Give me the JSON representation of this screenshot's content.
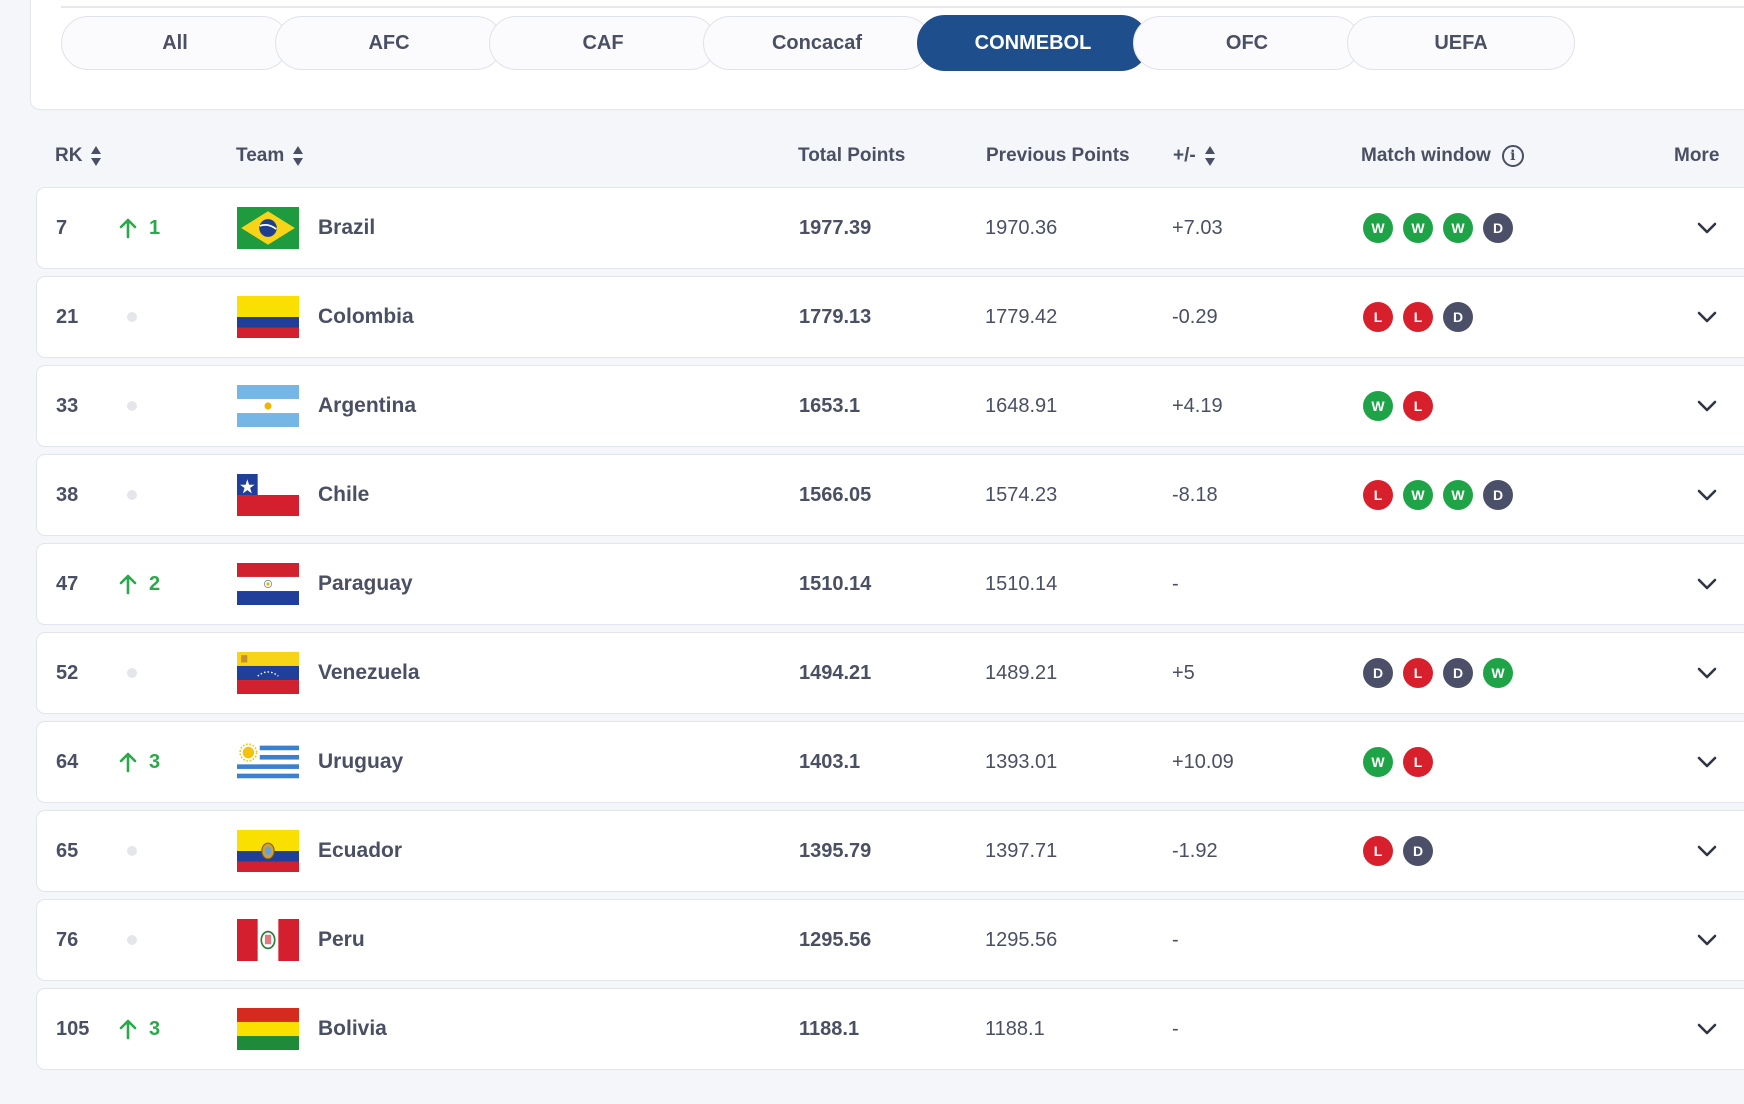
{
  "confederations": {
    "tabs": [
      {
        "label": "All"
      },
      {
        "label": "AFC"
      },
      {
        "label": "CAF"
      },
      {
        "label": "Concacaf"
      },
      {
        "label": "CONMEBOL",
        "active": true
      },
      {
        "label": "OFC"
      },
      {
        "label": "UEFA"
      }
    ]
  },
  "columns": {
    "rk": "RK",
    "team": "Team",
    "total_points": "Total Points",
    "previous_points": "Previous Points",
    "diff": "+/-",
    "match_window": "Match window",
    "more": "More"
  },
  "colors": {
    "active_tab": "#1f4e8c",
    "win": "#1ea446",
    "loss": "#d7202c",
    "draw": "#4b5068",
    "rank_up": "#2aa84a"
  },
  "rows": [
    {
      "rank": "7",
      "movement": "1",
      "team": "Brazil",
      "flag": "brazil",
      "total": "1977.39",
      "previous": "1970.36",
      "diff": "+7.03",
      "results": [
        "W",
        "W",
        "W",
        "D"
      ]
    },
    {
      "rank": "21",
      "movement": "",
      "team": "Colombia",
      "flag": "colombia",
      "total": "1779.13",
      "previous": "1779.42",
      "diff": "-0.29",
      "results": [
        "L",
        "L",
        "D"
      ]
    },
    {
      "rank": "33",
      "movement": "",
      "team": "Argentina",
      "flag": "argentina",
      "total": "1653.1",
      "previous": "1648.91",
      "diff": "+4.19",
      "results": [
        "W",
        "L"
      ]
    },
    {
      "rank": "38",
      "movement": "",
      "team": "Chile",
      "flag": "chile",
      "total": "1566.05",
      "previous": "1574.23",
      "diff": "-8.18",
      "results": [
        "L",
        "W",
        "W",
        "D"
      ]
    },
    {
      "rank": "47",
      "movement": "2",
      "team": "Paraguay",
      "flag": "paraguay",
      "total": "1510.14",
      "previous": "1510.14",
      "diff": "-",
      "results": []
    },
    {
      "rank": "52",
      "movement": "",
      "team": "Venezuela",
      "flag": "venezuela",
      "total": "1494.21",
      "previous": "1489.21",
      "diff": "+5",
      "results": [
        "D",
        "L",
        "D",
        "W"
      ]
    },
    {
      "rank": "64",
      "movement": "3",
      "team": "Uruguay",
      "flag": "uruguay",
      "total": "1403.1",
      "previous": "1393.01",
      "diff": "+10.09",
      "results": [
        "W",
        "L"
      ]
    },
    {
      "rank": "65",
      "movement": "",
      "team": "Ecuador",
      "flag": "ecuador",
      "total": "1395.79",
      "previous": "1397.71",
      "diff": "-1.92",
      "results": [
        "L",
        "D"
      ]
    },
    {
      "rank": "76",
      "movement": "",
      "team": "Peru",
      "flag": "peru",
      "total": "1295.56",
      "previous": "1295.56",
      "diff": "-",
      "results": []
    },
    {
      "rank": "105",
      "movement": "3",
      "team": "Bolivia",
      "flag": "bolivia",
      "total": "1188.1",
      "previous": "1188.1",
      "diff": "-",
      "results": []
    }
  ]
}
